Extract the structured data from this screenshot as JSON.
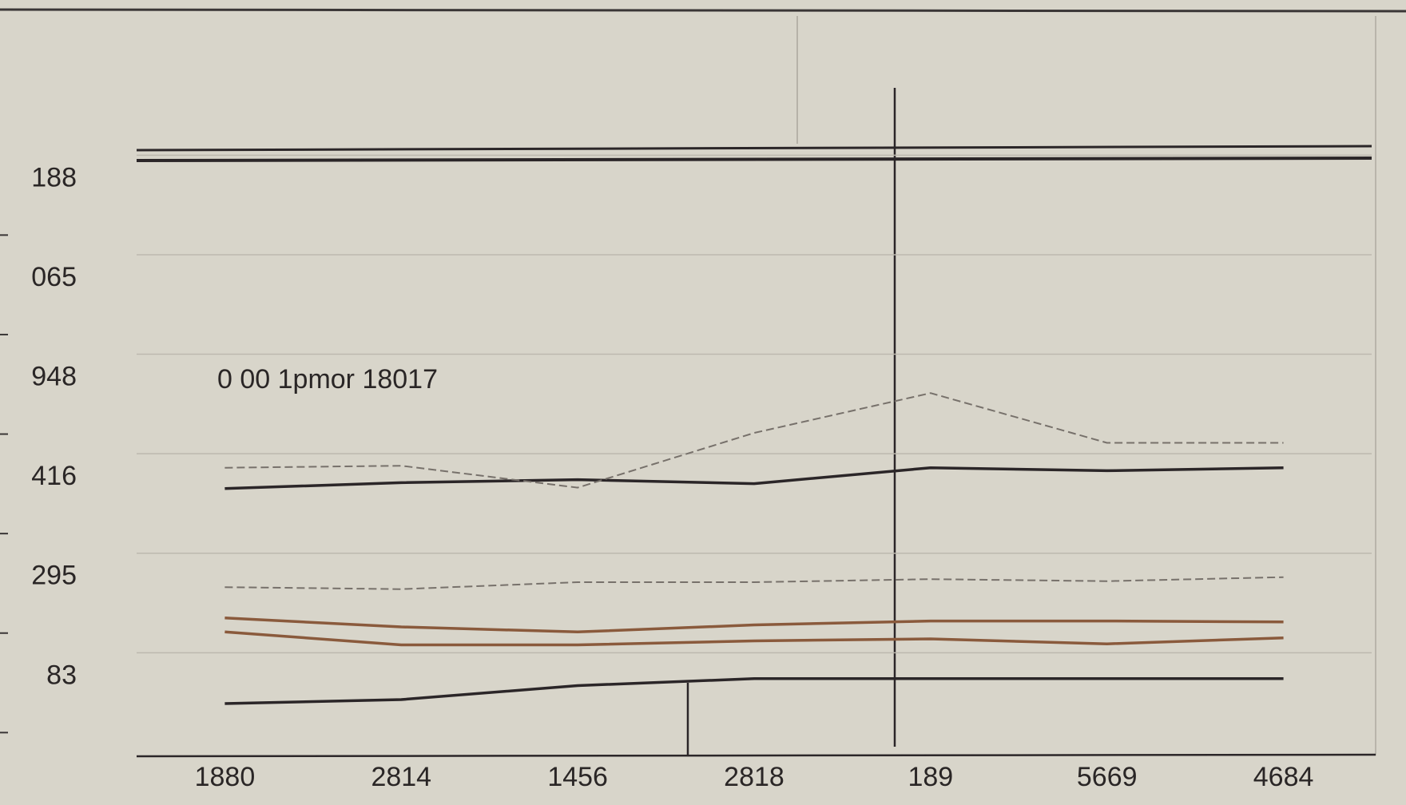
{
  "chart_data": {
    "type": "line",
    "annotation": "0 00 1pmor 18017",
    "categories": [
      "1880",
      "2814",
      "1456",
      "2818",
      "189",
      "5669",
      "4684"
    ],
    "ylim": [
      -0.8,
      6.6
    ],
    "yticks": [
      {
        "value": 5,
        "label": "188"
      },
      {
        "value": 4,
        "label": "065"
      },
      {
        "value": 3,
        "label": "948"
      },
      {
        "value": 2,
        "label": "416"
      },
      {
        "value": 1,
        "label": "295"
      },
      {
        "value": 0,
        "label": "83"
      }
    ],
    "grid": true,
    "series": [
      {
        "color": "#2b2628",
        "style": "solid",
        "values": [
          1.89,
          1.95,
          1.98,
          1.94,
          2.1,
          2.07,
          2.1
        ]
      },
      {
        "color": "#8a5a3c",
        "style": "solid",
        "values": [
          0.59,
          0.5,
          0.45,
          0.52,
          0.56,
          0.56,
          0.55
        ]
      },
      {
        "color": "#8a5a3c",
        "style": "solid",
        "values": [
          0.45,
          0.32,
          0.32,
          0.36,
          0.38,
          0.33,
          0.39
        ]
      },
      {
        "color": "#2b2628",
        "style": "solid",
        "values": [
          -0.27,
          -0.23,
          -0.09,
          -0.02,
          -0.02,
          -0.02,
          -0.02
        ]
      },
      {
        "color": "#77716b",
        "style": "dashed",
        "values": [
          2.1,
          2.12,
          1.9,
          2.45,
          2.85,
          2.35,
          2.35
        ]
      },
      {
        "color": "#77716b",
        "style": "dashed",
        "values": [
          0.9,
          0.88,
          0.95,
          0.95,
          0.98,
          0.96,
          1.0
        ]
      }
    ]
  }
}
